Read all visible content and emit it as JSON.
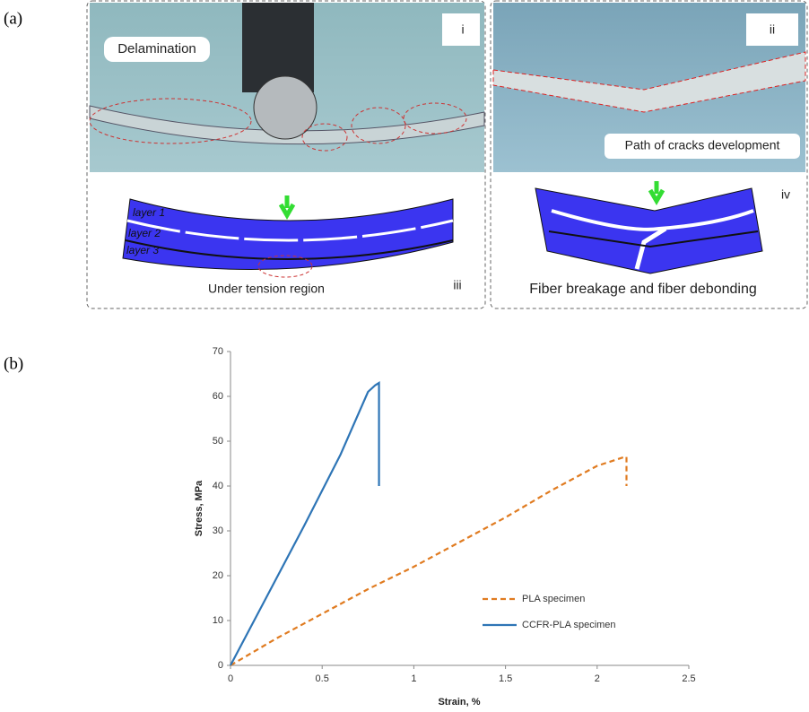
{
  "figure_labels": [
    "(a)",
    "(b)"
  ],
  "panels": [
    {
      "label": "i",
      "annotation": "Delamination"
    },
    {
      "label": "ii",
      "annotation": "Path of cracks development"
    },
    {
      "label": "iii",
      "layers": [
        "layer 1",
        "layer 2",
        "layer 3"
      ],
      "annotation": "Under tension region"
    },
    {
      "label": "iv",
      "annotation": "Fiber breakage and fiber debonding"
    }
  ],
  "chart_data": {
    "type": "line",
    "xlabel": "Strain, %",
    "ylabel": "Stress, MPa",
    "xlim": [
      0,
      2.5
    ],
    "xticks": [
      0,
      0.5,
      1,
      1.5,
      2,
      2.5
    ],
    "ylim": [
      0,
      70
    ],
    "yticks": [
      0,
      10,
      20,
      30,
      40,
      50,
      60,
      70
    ],
    "legend": "lower right",
    "series": [
      {
        "name": "PLA specimen",
        "color": "#e07b20",
        "dash": true,
        "x": [
          0,
          0.25,
          0.5,
          0.75,
          1,
          1.25,
          1.5,
          1.75,
          2,
          2.15,
          2.16,
          2.16
        ],
        "values": [
          0,
          6,
          11.5,
          17,
          22,
          27.5,
          33,
          39,
          44.5,
          46.5,
          46.5,
          40
        ]
      },
      {
        "name": "CCFR-PLA specimen",
        "color": "#2e75b6",
        "dash": false,
        "x": [
          0,
          0.2,
          0.4,
          0.6,
          0.75,
          0.79,
          0.81,
          0.81
        ],
        "values": [
          0,
          15.5,
          31,
          47,
          61,
          62.5,
          63,
          40
        ]
      }
    ]
  }
}
